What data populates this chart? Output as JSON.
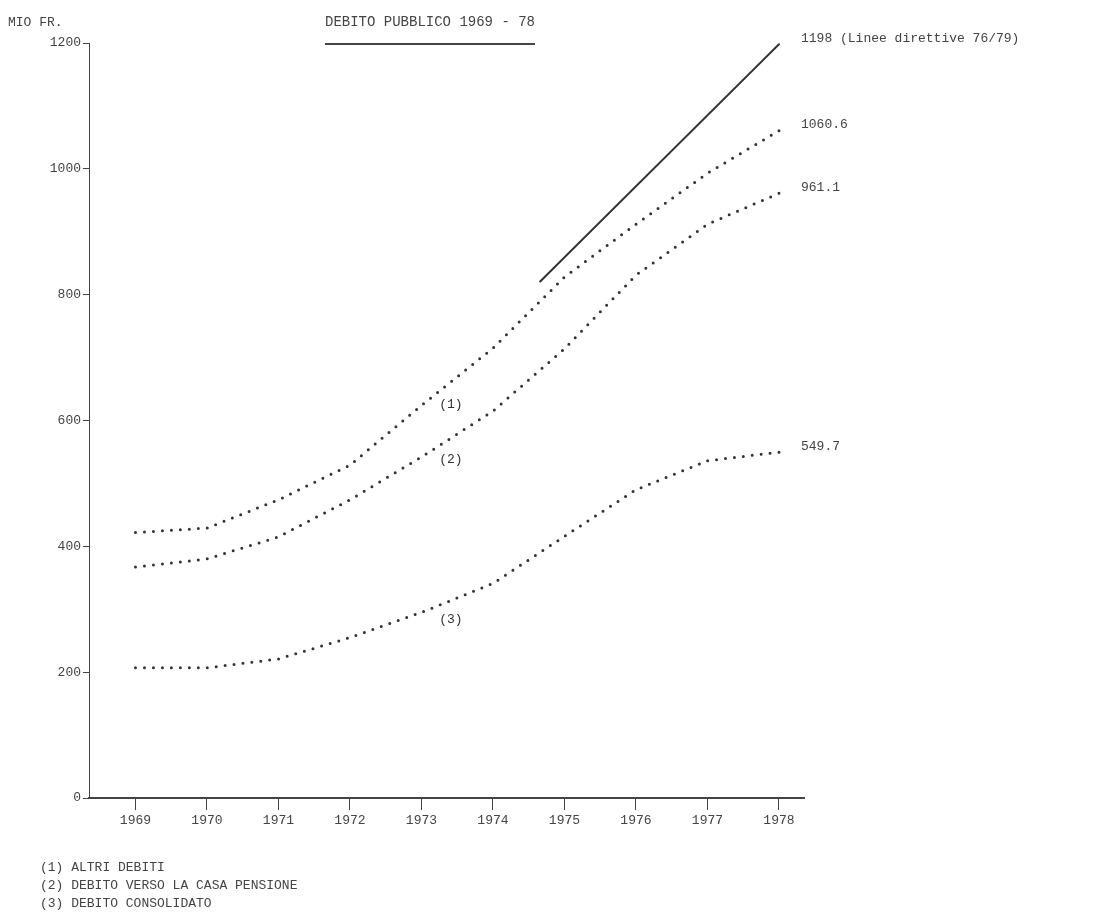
{
  "chart_data": {
    "type": "line",
    "title": "DEBITO PUBBLICO 1969 - 78",
    "ylabel": "MIO FR.",
    "x": [
      1969,
      1970,
      1971,
      1972,
      1973,
      1974,
      1975,
      1976,
      1977,
      1978
    ],
    "xlim": [
      1968.35,
      1978.35
    ],
    "xticks": [
      1969,
      1970,
      1971,
      1972,
      1973,
      1974,
      1975,
      1976,
      1977,
      1978
    ],
    "ylim": [
      0,
      1200
    ],
    "yticks": [
      0,
      200,
      400,
      600,
      800,
      1000,
      1200
    ],
    "grid": false,
    "legend": false,
    "marker": "none",
    "series": [
      {
        "name": "(1)",
        "color": "#333333",
        "line_style": "dotted",
        "values": [
          422,
          429,
          474,
          529,
          624,
          715,
          828,
          912,
          993,
          1060.6
        ],
        "value_labels": [
          null,
          null,
          null,
          null,
          null,
          null,
          null,
          null,
          null,
          "1060.6"
        ]
      },
      {
        "name": "(2)",
        "color": "#333333",
        "line_style": "dotted",
        "values": [
          367,
          380,
          415,
          474,
          542,
          615,
          714,
          831,
          912,
          961.1
        ],
        "value_labels": [
          null,
          null,
          null,
          null,
          null,
          null,
          null,
          null,
          null,
          "961.1"
        ]
      },
      {
        "name": "(3)",
        "color": "#333333",
        "line_style": "dotted",
        "values": [
          207,
          207,
          221,
          255,
          295,
          341,
          416,
          490,
          536,
          549.7
        ],
        "value_labels": [
          null,
          null,
          null,
          null,
          null,
          null,
          null,
          null,
          null,
          "549.7"
        ]
      },
      {
        "color": "#333333",
        "line_style": "solid",
        "x": [
          1974.66,
          1978
        ],
        "values": [
          821,
          1198
        ],
        "value_labels": [
          null,
          "1198 (Linee direttive 76/79)"
        ]
      }
    ],
    "annotations": [
      "(1) ALTRI DEBITI",
      "(2) DEBITO VERSO LA CASA PENSIONE",
      "(3) DEBITO CONSOLIDATO"
    ]
  }
}
